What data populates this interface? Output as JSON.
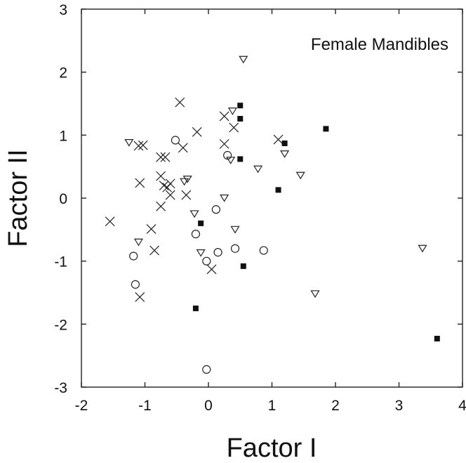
{
  "chart_data": {
    "type": "scatter",
    "title": "",
    "annotation": "Female Mandibles",
    "xlabel": "Factor I",
    "ylabel": "Factor II",
    "xlim": [
      -2,
      4
    ],
    "ylim": [
      -3,
      3
    ],
    "xticks": [
      "-2",
      "-1",
      "0",
      "1",
      "2",
      "3",
      "4"
    ],
    "yticks": [
      "3",
      "2",
      "1",
      "0",
      "-1",
      "-2",
      "-3"
    ],
    "grid": false,
    "legend": "none",
    "series": [
      {
        "marker": "cross",
        "points": [
          [
            -1.55,
            -0.37
          ],
          [
            -1.1,
            0.83
          ],
          [
            -1.03,
            0.84
          ],
          [
            -1.08,
            0.24
          ],
          [
            -0.9,
            -0.49
          ],
          [
            -0.85,
            -0.83
          ],
          [
            -1.08,
            -1.57
          ],
          [
            -0.75,
            0.65
          ],
          [
            -0.75,
            0.35
          ],
          [
            -0.68,
            0.65
          ],
          [
            -0.7,
            0.2
          ],
          [
            -0.65,
            0.17
          ],
          [
            -0.6,
            0.23
          ],
          [
            -0.6,
            0.05
          ],
          [
            -0.75,
            -0.13
          ],
          [
            -0.45,
            1.52
          ],
          [
            -0.4,
            0.8
          ],
          [
            -0.35,
            0.05
          ],
          [
            -0.18,
            1.05
          ],
          [
            0.25,
            1.3
          ],
          [
            0.25,
            0.86
          ],
          [
            0.4,
            1.12
          ],
          [
            1.1,
            0.93
          ],
          [
            0.05,
            -1.13
          ]
        ]
      },
      {
        "marker": "open-circle",
        "points": [
          [
            -1.18,
            -0.92
          ],
          [
            -1.15,
            -1.37
          ],
          [
            -0.52,
            0.92
          ],
          [
            -0.2,
            -0.57
          ],
          [
            0.12,
            -0.18
          ],
          [
            0.3,
            0.68
          ],
          [
            -0.03,
            -1.0
          ],
          [
            0.15,
            -0.86
          ],
          [
            0.42,
            -0.8
          ],
          [
            0.87,
            -0.83
          ],
          [
            -0.03,
            -2.72
          ]
        ]
      },
      {
        "marker": "open-triangle",
        "points": [
          [
            -1.25,
            0.88
          ],
          [
            -1.1,
            -0.7
          ],
          [
            -0.33,
            0.3
          ],
          [
            -0.38,
            0.26
          ],
          [
            -0.22,
            -0.25
          ],
          [
            -0.12,
            -0.87
          ],
          [
            0.25,
            0.0
          ],
          [
            0.35,
            0.6
          ],
          [
            0.38,
            1.38
          ],
          [
            0.42,
            -0.5
          ],
          [
            0.55,
            2.2
          ],
          [
            0.78,
            0.46
          ],
          [
            1.2,
            0.7
          ],
          [
            1.45,
            0.36
          ],
          [
            1.68,
            -1.52
          ],
          [
            3.37,
            -0.8
          ]
        ]
      },
      {
        "marker": "filled-square",
        "points": [
          [
            0.5,
            1.47
          ],
          [
            0.5,
            1.26
          ],
          [
            0.5,
            0.62
          ],
          [
            1.2,
            0.87
          ],
          [
            1.1,
            0.13
          ],
          [
            1.85,
            1.1
          ],
          [
            -0.12,
            -0.4
          ],
          [
            0.55,
            -1.08
          ],
          [
            -0.2,
            -1.75
          ],
          [
            3.6,
            -2.23
          ]
        ]
      }
    ]
  }
}
